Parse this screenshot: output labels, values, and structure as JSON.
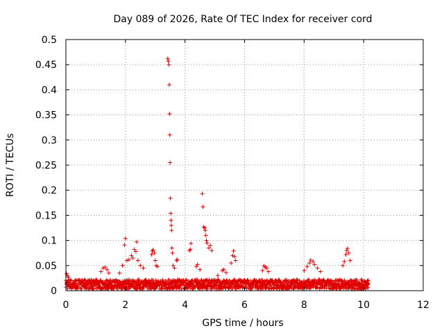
{
  "chart_data": {
    "type": "scatter",
    "title": "Day 089 of 2026, Rate Of TEC Index for receiver cord",
    "xlabel": "GPS time / hours",
    "ylabel": "ROTI / TECUs",
    "xlim": [
      0,
      12
    ],
    "ylim": [
      0,
      0.5
    ],
    "x_ticks": [
      "0",
      "2",
      "4",
      "6",
      "8",
      "10",
      "12"
    ],
    "y_ticks": [
      "0",
      "0.05",
      "0.1",
      "0.15",
      "0.2",
      "0.25",
      "0.3",
      "0.35",
      "0.4",
      "0.45",
      "0.5"
    ],
    "grid": true,
    "marker": "+",
    "color": "#e00000",
    "x_data_range": [
      0,
      10.15
    ],
    "baseline_band": [
      0.003,
      0.022
    ],
    "points": [
      [
        0.02,
        0.034
      ],
      [
        0.05,
        0.03
      ],
      [
        0.08,
        0.027
      ],
      [
        0.11,
        0.022
      ],
      [
        0.15,
        0.02
      ],
      [
        1.18,
        0.038
      ],
      [
        1.25,
        0.045
      ],
      [
        1.32,
        0.047
      ],
      [
        1.38,
        0.042
      ],
      [
        1.44,
        0.035
      ],
      [
        1.8,
        0.035
      ],
      [
        1.9,
        0.05
      ],
      [
        1.97,
        0.091
      ],
      [
        2.0,
        0.104
      ],
      [
        2.05,
        0.06
      ],
      [
        2.12,
        0.062
      ],
      [
        2.2,
        0.07
      ],
      [
        2.25,
        0.065
      ],
      [
        2.3,
        0.082
      ],
      [
        2.35,
        0.078
      ],
      [
        2.38,
        0.097
      ],
      [
        2.42,
        0.06
      ],
      [
        2.5,
        0.05
      ],
      [
        2.6,
        0.045
      ],
      [
        2.88,
        0.072
      ],
      [
        2.9,
        0.079
      ],
      [
        2.93,
        0.081
      ],
      [
        2.97,
        0.075
      ],
      [
        3.0,
        0.06
      ],
      [
        3.03,
        0.05
      ],
      [
        3.08,
        0.048
      ],
      [
        3.42,
        0.462
      ],
      [
        3.44,
        0.457
      ],
      [
        3.46,
        0.45
      ],
      [
        3.47,
        0.41
      ],
      [
        3.48,
        0.352
      ],
      [
        3.49,
        0.31
      ],
      [
        3.5,
        0.255
      ],
      [
        3.51,
        0.184
      ],
      [
        3.52,
        0.154
      ],
      [
        3.53,
        0.14
      ],
      [
        3.54,
        0.13
      ],
      [
        3.55,
        0.12
      ],
      [
        3.56,
        0.085
      ],
      [
        3.58,
        0.075
      ],
      [
        3.6,
        0.05
      ],
      [
        3.65,
        0.045
      ],
      [
        3.72,
        0.06
      ],
      [
        3.74,
        0.062
      ],
      [
        4.15,
        0.08
      ],
      [
        4.18,
        0.082
      ],
      [
        4.2,
        0.094
      ],
      [
        4.38,
        0.048
      ],
      [
        4.42,
        0.052
      ],
      [
        4.5,
        0.042
      ],
      [
        4.58,
        0.193
      ],
      [
        4.6,
        0.167
      ],
      [
        4.63,
        0.127
      ],
      [
        4.66,
        0.125
      ],
      [
        4.68,
        0.12
      ],
      [
        4.7,
        0.11
      ],
      [
        4.72,
        0.1
      ],
      [
        4.74,
        0.095
      ],
      [
        4.8,
        0.085
      ],
      [
        4.85,
        0.09
      ],
      [
        4.9,
        0.08
      ],
      [
        5.1,
        0.03
      ],
      [
        5.25,
        0.04
      ],
      [
        5.3,
        0.042
      ],
      [
        5.38,
        0.036
      ],
      [
        5.55,
        0.055
      ],
      [
        5.6,
        0.07
      ],
      [
        5.63,
        0.079
      ],
      [
        5.66,
        0.068
      ],
      [
        5.7,
        0.06
      ],
      [
        6.6,
        0.04
      ],
      [
        6.65,
        0.049
      ],
      [
        6.7,
        0.047
      ],
      [
        6.75,
        0.045
      ],
      [
        6.8,
        0.038
      ],
      [
        8.0,
        0.04
      ],
      [
        8.1,
        0.048
      ],
      [
        8.18,
        0.055
      ],
      [
        8.22,
        0.061
      ],
      [
        8.3,
        0.058
      ],
      [
        8.35,
        0.052
      ],
      [
        8.45,
        0.045
      ],
      [
        8.55,
        0.038
      ],
      [
        9.3,
        0.05
      ],
      [
        9.35,
        0.058
      ],
      [
        9.4,
        0.072
      ],
      [
        9.43,
        0.08
      ],
      [
        9.46,
        0.084
      ],
      [
        9.5,
        0.075
      ],
      [
        9.55,
        0.06
      ],
      [
        10.05,
        0.018
      ],
      [
        10.1,
        0.015
      ],
      [
        10.15,
        0.014
      ]
    ]
  }
}
